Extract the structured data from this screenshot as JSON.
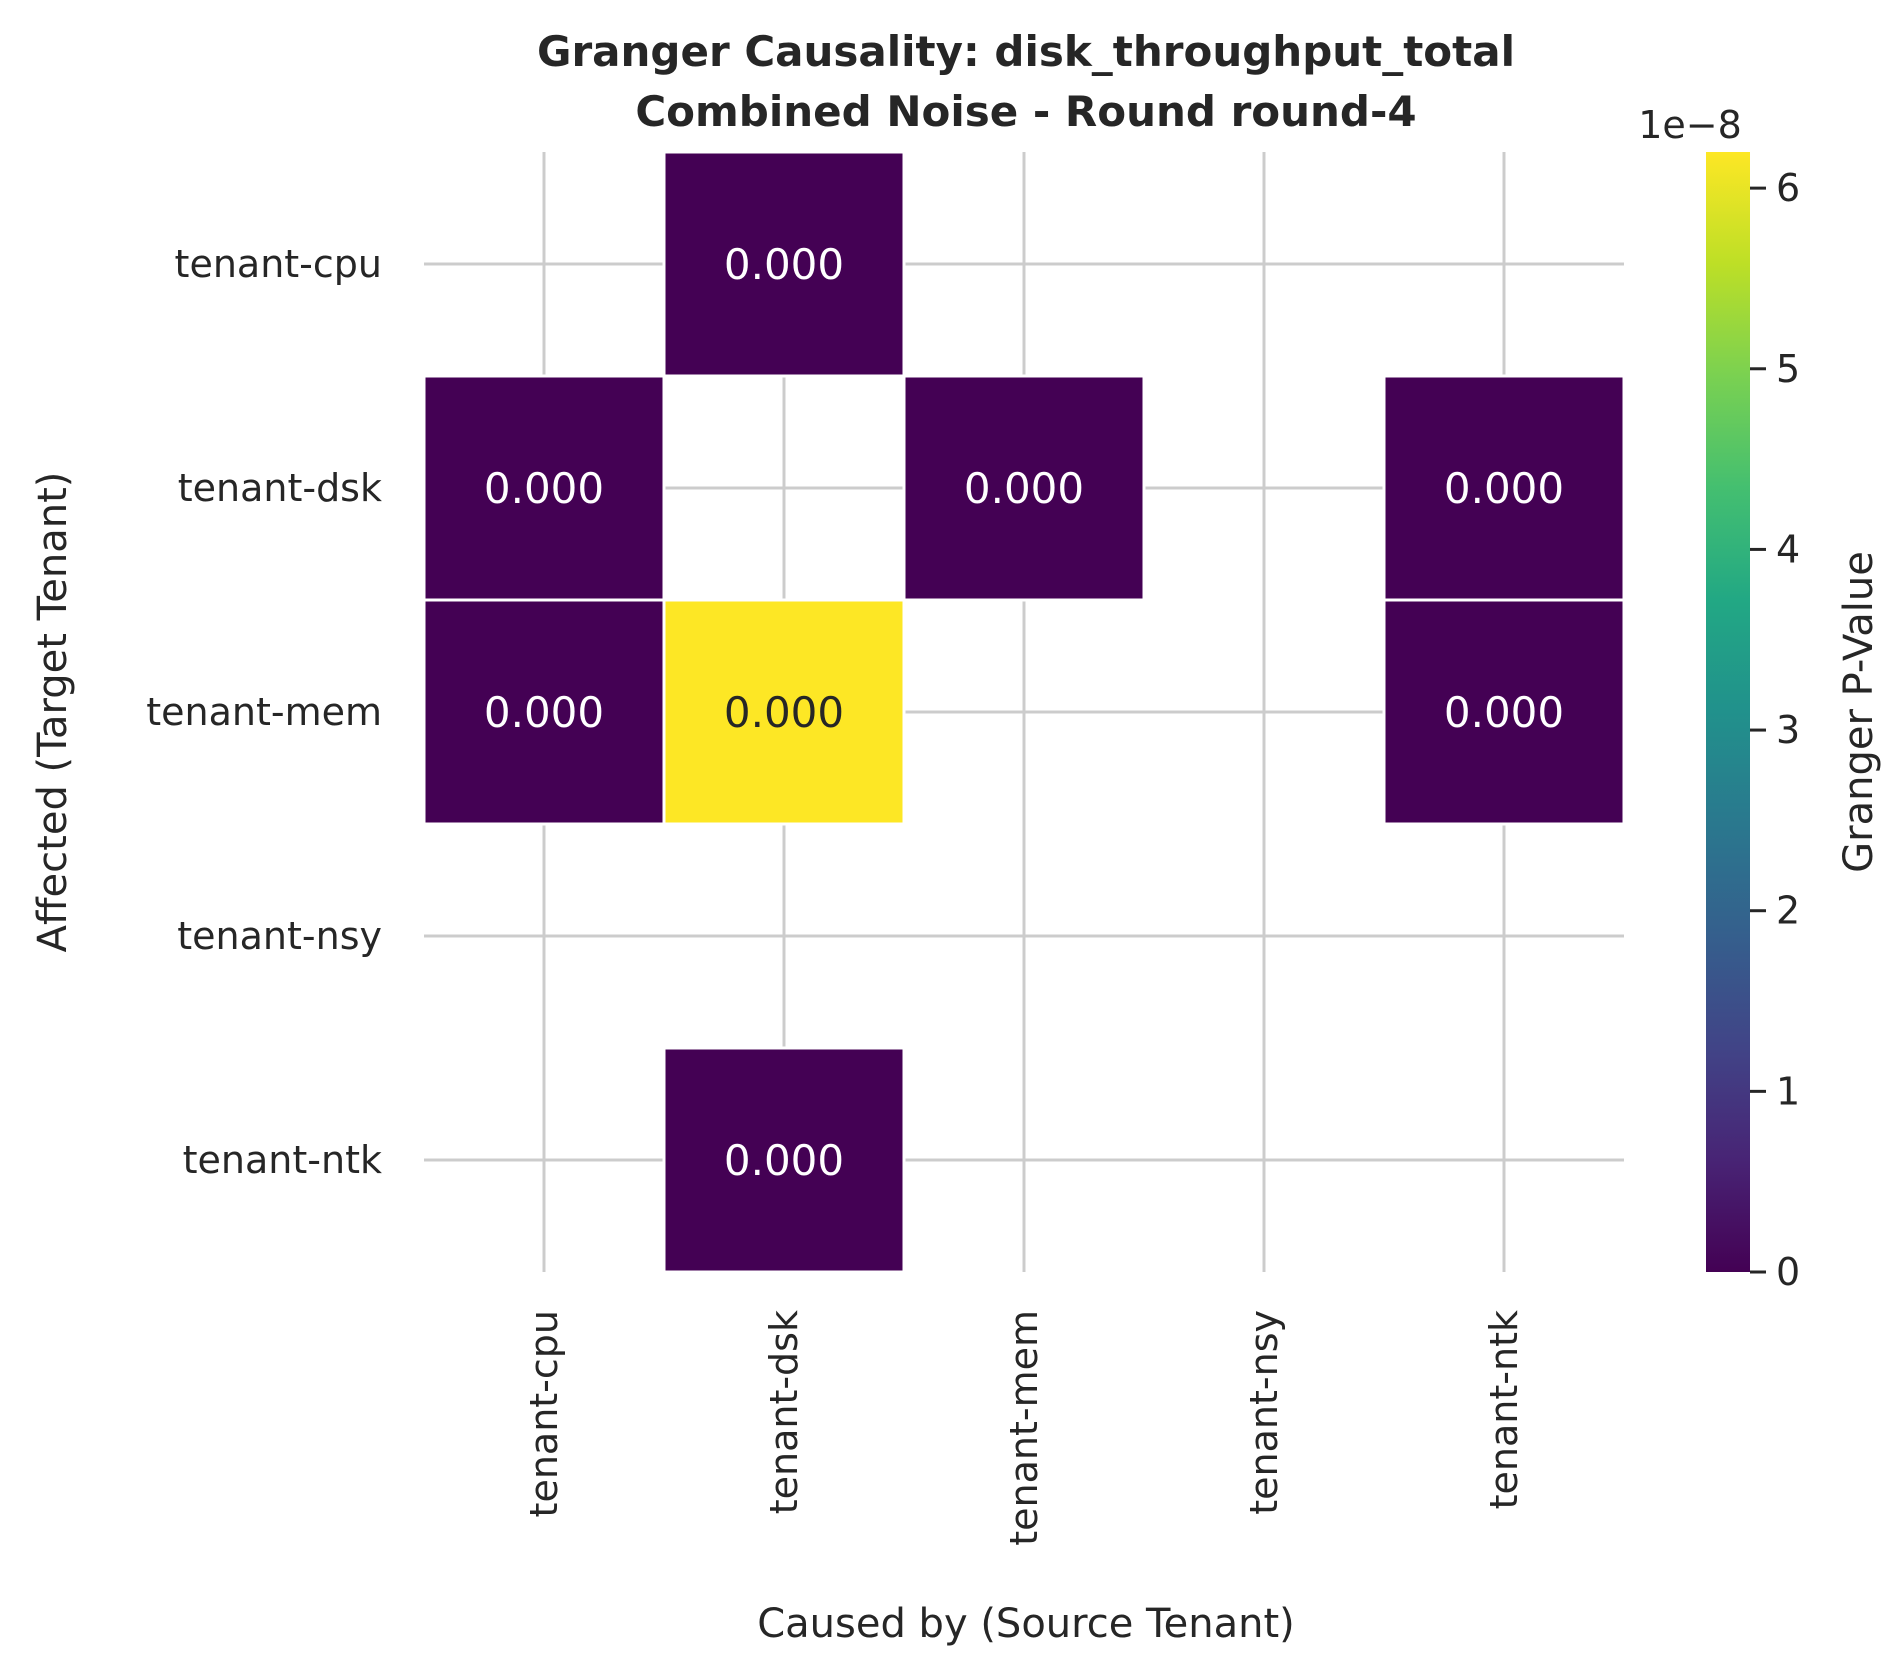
{
  "chart_data": {
    "type": "heatmap",
    "title_lines": [
      "Granger Causality: disk_throughput_total",
      "Combined Noise - Round round-4"
    ],
    "xlabel": "Caused by (Source Tenant)",
    "ylabel": "Affected (Target Tenant)",
    "x_categories": [
      "tenant-cpu",
      "tenant-dsk",
      "tenant-mem",
      "tenant-nsy",
      "tenant-ntk"
    ],
    "y_categories": [
      "tenant-cpu",
      "tenant-dsk",
      "tenant-mem",
      "tenant-nsy",
      "tenant-ntk"
    ],
    "values": [
      [
        null,
        0.0,
        null,
        null,
        null
      ],
      [
        0.0,
        null,
        0.0,
        null,
        0.0
      ],
      [
        0.0,
        6.2e-08,
        null,
        null,
        0.0
      ],
      [
        null,
        null,
        null,
        null,
        null
      ],
      [
        null,
        0.0,
        null,
        null,
        null
      ]
    ],
    "annotations": [
      [
        "",
        "0.000",
        "",
        "",
        ""
      ],
      [
        "0.000",
        "",
        "0.000",
        "",
        "0.000"
      ],
      [
        "0.000",
        "0.000",
        "",
        "",
        "0.000"
      ],
      [
        "",
        "",
        "",
        "",
        ""
      ],
      [
        "",
        "0.000",
        "",
        "",
        ""
      ]
    ],
    "colorbar": {
      "label": "Granger P-Value",
      "colormap": "viridis",
      "range": [
        0,
        6.2e-08
      ],
      "ticks": [
        0,
        1,
        2,
        3,
        4,
        5,
        6
      ],
      "offset_text": "1e−8"
    },
    "grid": true
  }
}
